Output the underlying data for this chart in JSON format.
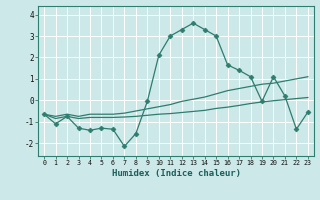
{
  "xlabel": "Humidex (Indice chaleur)",
  "background_color": "#cce8e8",
  "grid_color": "#ffffff",
  "line_color": "#2e7d6e",
  "x_ticks": [
    0,
    1,
    2,
    3,
    4,
    5,
    6,
    7,
    8,
    9,
    10,
    11,
    12,
    13,
    14,
    15,
    16,
    17,
    18,
    19,
    20,
    21,
    22,
    23
  ],
  "ylim": [
    -2.6,
    4.4
  ],
  "xlim": [
    -0.5,
    23.5
  ],
  "line1_x": [
    0,
    1,
    2,
    3,
    4,
    5,
    6,
    7,
    8,
    9,
    10,
    11,
    12,
    13,
    14,
    15,
    16,
    17,
    18,
    19,
    20,
    21,
    22,
    23
  ],
  "line1_y": [
    -0.65,
    -1.1,
    -0.75,
    -1.3,
    -1.4,
    -1.3,
    -1.35,
    -2.15,
    -1.55,
    -0.05,
    2.1,
    3.0,
    3.3,
    3.6,
    3.3,
    3.0,
    1.65,
    1.4,
    1.1,
    -0.05,
    1.1,
    0.2,
    -1.35,
    -0.55
  ],
  "line2_x": [
    0,
    1,
    2,
    3,
    4,
    5,
    6,
    7,
    8,
    9,
    10,
    11,
    12,
    13,
    14,
    15,
    16,
    17,
    18,
    19,
    20,
    21,
    22,
    23
  ],
  "line2_y": [
    -0.65,
    -0.75,
    -0.65,
    -0.75,
    -0.65,
    -0.65,
    -0.65,
    -0.6,
    -0.5,
    -0.4,
    -0.3,
    -0.2,
    -0.05,
    0.05,
    0.15,
    0.3,
    0.45,
    0.55,
    0.65,
    0.75,
    0.8,
    0.9,
    1.0,
    1.1
  ],
  "line3_x": [
    0,
    1,
    2,
    3,
    4,
    5,
    6,
    7,
    8,
    9,
    10,
    11,
    12,
    13,
    14,
    15,
    16,
    17,
    18,
    19,
    20,
    21,
    22,
    23
  ],
  "line3_y": [
    -0.65,
    -0.85,
    -0.75,
    -0.85,
    -0.8,
    -0.8,
    -0.8,
    -0.78,
    -0.75,
    -0.7,
    -0.65,
    -0.62,
    -0.57,
    -0.52,
    -0.47,
    -0.38,
    -0.32,
    -0.24,
    -0.15,
    -0.08,
    -0.02,
    0.03,
    0.08,
    0.13
  ],
  "yticks": [
    -2,
    -1,
    0,
    1,
    2,
    3,
    4
  ]
}
